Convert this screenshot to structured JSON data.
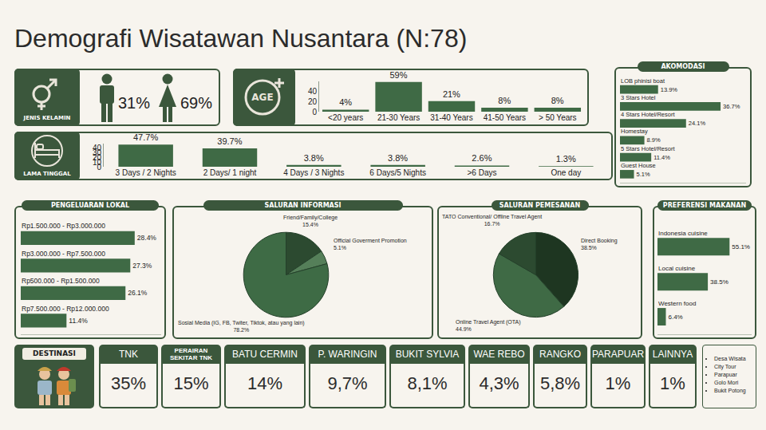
{
  "title": "Demografi Wisatawan Nusantara (N:78)",
  "gender": {
    "title": "JENIS KELAMIN",
    "shares": [
      "31%",
      "69%"
    ]
  },
  "chart_data": [
    {
      "type": "bar",
      "title": "AGE",
      "categories": [
        "<20 years",
        "21-30 Years",
        "31-40 Years",
        "41-50 Years",
        "> 50 Years"
      ],
      "values": [
        4,
        59,
        21,
        8,
        8
      ],
      "value_labels": [
        "4%",
        "59%",
        "21%",
        "8%",
        "8%"
      ],
      "data_labels": true,
      "color": "#3f6a45",
      "ylim": [
        0,
        60
      ],
      "yticks": [
        0,
        20,
        40
      ],
      "grid": false
    },
    {
      "type": "bar",
      "title": "LAMA TINGGAL",
      "categories": [
        "3 Days / 2 Nights",
        "2 Days/ 1 night",
        "4 Days / 3 Nights",
        "6 Days/5 Nights",
        ">6 Days",
        "One day"
      ],
      "values": [
        47.7,
        39.7,
        3.8,
        3.8,
        2.6,
        1.3
      ],
      "value_labels": [
        "47.7%",
        "39.7%",
        "3.8%",
        "3.8%",
        "2.6%",
        "1.3%"
      ],
      "data_labels": true,
      "color": "#3f6a45",
      "ylim": [
        0,
        50
      ],
      "yticks": [
        0,
        10,
        20,
        30,
        40
      ],
      "grid": false
    },
    {
      "type": "bar",
      "title": "AKOMODASI",
      "orientation": "horizontal",
      "categories": [
        "LOB phinisi boat",
        "3 Stars Hotel",
        "4 Stars Hotel/Resort",
        "Homestay",
        "5 Stars Hotel/Resort",
        "Guest House"
      ],
      "values": [
        13.9,
        36.7,
        24.1,
        8.9,
        11.4,
        5.1
      ],
      "value_labels": [
        "13.9%",
        "36.7%",
        "24.1%",
        "8.9%",
        "11.4%",
        "5.1%"
      ],
      "data_labels": true,
      "color": "#3f6a45",
      "xlim": [
        0,
        46
      ],
      "tick_labels": false,
      "grid": false
    },
    {
      "type": "bar",
      "title": "PENGELUARAN LOKAL",
      "orientation": "horizontal",
      "categories": [
        "Rp1.500.000 - Rp3.000.000",
        "Rp3.000.000 - Rp7.500.000",
        "Rp500.000 - Rp1.500.000",
        "Rp7.500.000 - Rp12.000.000"
      ],
      "values": [
        28.4,
        27.3,
        26.1,
        11.4
      ],
      "value_labels": [
        "28.4%",
        "27.3%",
        "26.1%",
        "11.4%"
      ],
      "data_labels": true,
      "color": "#3f6a45",
      "xlim": [
        0,
        35
      ],
      "tick_labels": false,
      "grid": false
    },
    {
      "type": "pie",
      "title": "SALURAN INFORMASI",
      "categories": [
        "Friend/Family/College",
        "Official Goverment Promotion",
        "Sosial Media (IG, FB, Twiter, Tiktok, atau yang lain)"
      ],
      "values": [
        15.4,
        5.1,
        78.2
      ],
      "value_labels": [
        "15.4%",
        "5.1%",
        "78.2%"
      ],
      "data_labels": true,
      "colors": [
        "#2c4a30",
        "#557f59",
        "#3e6b45"
      ]
    },
    {
      "type": "pie",
      "title": "SALURAN PEMESANAN",
      "categories": [
        "Direct Booking",
        "Online Travel Agent (OTA)",
        "TATO Conventional/ Offline Travel Agent"
      ],
      "values": [
        38.5,
        44.9,
        16.7
      ],
      "value_labels": [
        "38.5%",
        "44.9%",
        "16.7%"
      ],
      "data_labels": true,
      "colors": [
        "#1e3621",
        "#3f6a45",
        "#2c4a30"
      ]
    },
    {
      "type": "bar",
      "title": "PREFERENSI MAKANAN",
      "orientation": "horizontal",
      "categories": [
        "Indonesia cuisine",
        "Local cuisine",
        "Western food"
      ],
      "values": [
        55.1,
        38.5,
        6.4
      ],
      "value_labels": [
        "55.1%",
        "38.5%",
        "6.4%"
      ],
      "data_labels": true,
      "color": "#3f6a45",
      "xlim": [
        0,
        72
      ],
      "tick_labels": false,
      "grid": false
    }
  ],
  "destinations": {
    "title": "DESTINASI",
    "cards": [
      {
        "label": "TNK",
        "value": "35%"
      },
      {
        "label": "PERAIRAN SEKITAR TNK",
        "value": "15%"
      },
      {
        "label": "BATU CERMIN",
        "value": "14%"
      },
      {
        "label": "P. WARINGIN",
        "value": "9,7%"
      },
      {
        "label": "BUKIT SYLVIA",
        "value": "8,1%"
      },
      {
        "label": "WAE REBO",
        "value": "4,3%"
      },
      {
        "label": "RANGKO",
        "value": "5,8%"
      },
      {
        "label": "PARAPUAR",
        "value": "1%"
      },
      {
        "label": "LAINNYA",
        "value": "1%"
      }
    ],
    "others": [
      "Desa Wisata",
      "City Tour",
      "Parapuar",
      "Golo Mori",
      "Bukit Potong"
    ]
  }
}
